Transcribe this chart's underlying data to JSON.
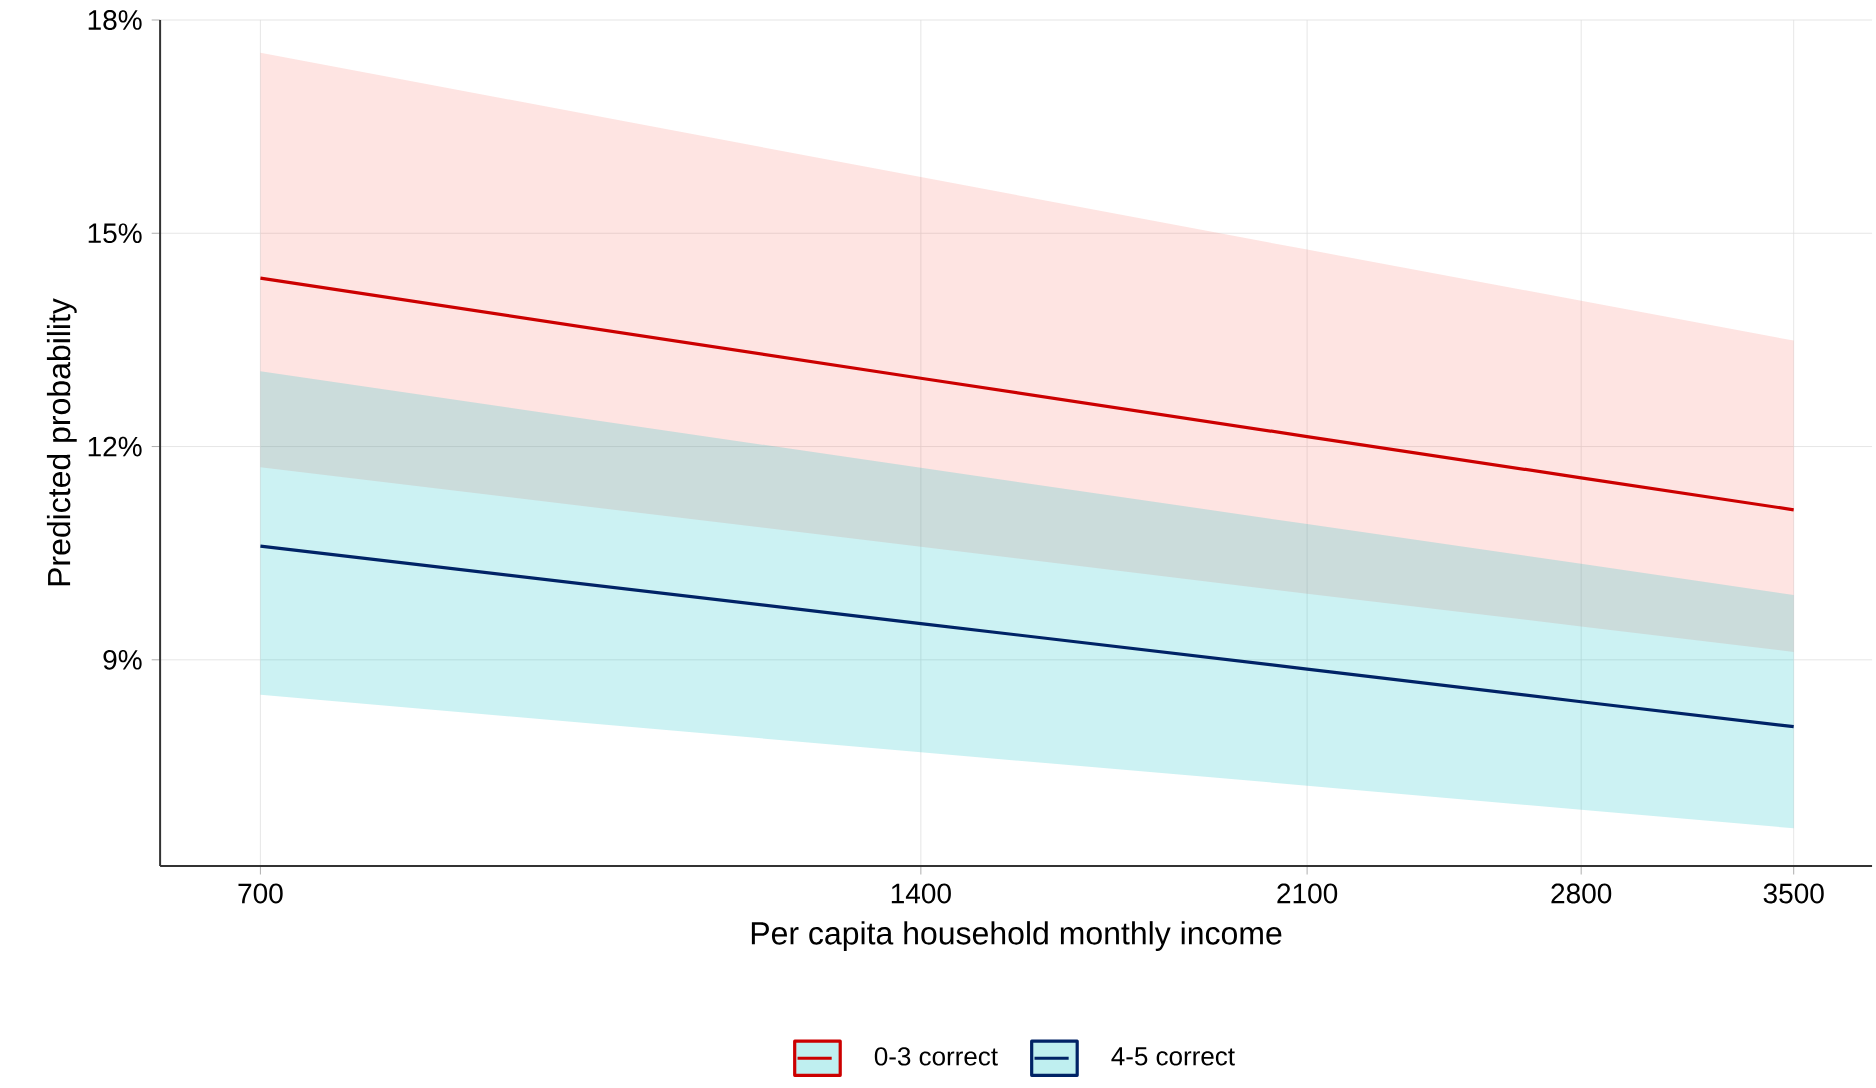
{
  "chart_data": {
    "type": "line",
    "xlabel": "Per capita household monthly income",
    "ylabel": "Predicted probability",
    "x": [
      700,
      1400,
      2100,
      2800,
      3500
    ],
    "series": [
      {
        "name": "0-3 correct",
        "color": "#cc0000",
        "values": [
          14.37,
          12.96,
          12.14,
          11.56,
          11.11
        ],
        "lower": [
          11.71,
          10.59,
          9.93,
          9.47,
          9.11
        ],
        "upper": [
          17.54,
          15.79,
          14.77,
          14.05,
          13.49
        ]
      },
      {
        "name": "4-5 correct",
        "color": "#002366",
        "values": [
          10.6,
          9.51,
          8.87,
          8.41,
          8.06
        ],
        "lower": [
          8.51,
          7.7,
          7.23,
          6.89,
          6.63
        ],
        "upper": [
          13.06,
          11.7,
          10.91,
          10.35,
          9.91
        ]
      }
    ],
    "log": "x",
    "xlim": [
      630,
      3800
    ],
    "ylim": [
      6.1,
      18
    ],
    "xticks": [
      700,
      1400,
      2100,
      2800,
      3500
    ],
    "yticks": [
      {
        "value": 9,
        "label": "9%"
      },
      {
        "value": 12,
        "label": "12%"
      },
      {
        "value": 15,
        "label": "15%"
      },
      {
        "value": 18,
        "label": "18%"
      }
    ],
    "grid": true,
    "legend": "bottom",
    "line_style": "solid",
    "marker": "none"
  }
}
